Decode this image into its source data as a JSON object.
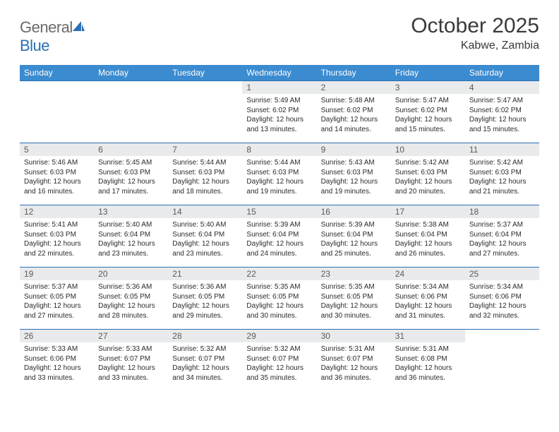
{
  "brand": {
    "part1": "General",
    "part2": "Blue"
  },
  "title": "October 2025",
  "subtitle": "Kabwe, Zambia",
  "colors": {
    "header_blue": "#3b8bd0",
    "rule_blue": "#2a6fb5",
    "daynum_bg": "#e9eaeb",
    "text_dark": "#2a2a2a",
    "text_gray": "#6a6a6a"
  },
  "weekdays": [
    "Sunday",
    "Monday",
    "Tuesday",
    "Wednesday",
    "Thursday",
    "Friday",
    "Saturday"
  ],
  "weeks": [
    [
      null,
      null,
      null,
      {
        "day": "1",
        "sunrise": "5:49 AM",
        "sunset": "6:02 PM",
        "daylight": "12 hours and 13 minutes."
      },
      {
        "day": "2",
        "sunrise": "5:48 AM",
        "sunset": "6:02 PM",
        "daylight": "12 hours and 14 minutes."
      },
      {
        "day": "3",
        "sunrise": "5:47 AM",
        "sunset": "6:02 PM",
        "daylight": "12 hours and 15 minutes."
      },
      {
        "day": "4",
        "sunrise": "5:47 AM",
        "sunset": "6:02 PM",
        "daylight": "12 hours and 15 minutes."
      }
    ],
    [
      {
        "day": "5",
        "sunrise": "5:46 AM",
        "sunset": "6:03 PM",
        "daylight": "12 hours and 16 minutes."
      },
      {
        "day": "6",
        "sunrise": "5:45 AM",
        "sunset": "6:03 PM",
        "daylight": "12 hours and 17 minutes."
      },
      {
        "day": "7",
        "sunrise": "5:44 AM",
        "sunset": "6:03 PM",
        "daylight": "12 hours and 18 minutes."
      },
      {
        "day": "8",
        "sunrise": "5:44 AM",
        "sunset": "6:03 PM",
        "daylight": "12 hours and 19 minutes."
      },
      {
        "day": "9",
        "sunrise": "5:43 AM",
        "sunset": "6:03 PM",
        "daylight": "12 hours and 19 minutes."
      },
      {
        "day": "10",
        "sunrise": "5:42 AM",
        "sunset": "6:03 PM",
        "daylight": "12 hours and 20 minutes."
      },
      {
        "day": "11",
        "sunrise": "5:42 AM",
        "sunset": "6:03 PM",
        "daylight": "12 hours and 21 minutes."
      }
    ],
    [
      {
        "day": "12",
        "sunrise": "5:41 AM",
        "sunset": "6:03 PM",
        "daylight": "12 hours and 22 minutes."
      },
      {
        "day": "13",
        "sunrise": "5:40 AM",
        "sunset": "6:04 PM",
        "daylight": "12 hours and 23 minutes."
      },
      {
        "day": "14",
        "sunrise": "5:40 AM",
        "sunset": "6:04 PM",
        "daylight": "12 hours and 23 minutes."
      },
      {
        "day": "15",
        "sunrise": "5:39 AM",
        "sunset": "6:04 PM",
        "daylight": "12 hours and 24 minutes."
      },
      {
        "day": "16",
        "sunrise": "5:39 AM",
        "sunset": "6:04 PM",
        "daylight": "12 hours and 25 minutes."
      },
      {
        "day": "17",
        "sunrise": "5:38 AM",
        "sunset": "6:04 PM",
        "daylight": "12 hours and 26 minutes."
      },
      {
        "day": "18",
        "sunrise": "5:37 AM",
        "sunset": "6:04 PM",
        "daylight": "12 hours and 27 minutes."
      }
    ],
    [
      {
        "day": "19",
        "sunrise": "5:37 AM",
        "sunset": "6:05 PM",
        "daylight": "12 hours and 27 minutes."
      },
      {
        "day": "20",
        "sunrise": "5:36 AM",
        "sunset": "6:05 PM",
        "daylight": "12 hours and 28 minutes."
      },
      {
        "day": "21",
        "sunrise": "5:36 AM",
        "sunset": "6:05 PM",
        "daylight": "12 hours and 29 minutes."
      },
      {
        "day": "22",
        "sunrise": "5:35 AM",
        "sunset": "6:05 PM",
        "daylight": "12 hours and 30 minutes."
      },
      {
        "day": "23",
        "sunrise": "5:35 AM",
        "sunset": "6:05 PM",
        "daylight": "12 hours and 30 minutes."
      },
      {
        "day": "24",
        "sunrise": "5:34 AM",
        "sunset": "6:06 PM",
        "daylight": "12 hours and 31 minutes."
      },
      {
        "day": "25",
        "sunrise": "5:34 AM",
        "sunset": "6:06 PM",
        "daylight": "12 hours and 32 minutes."
      }
    ],
    [
      {
        "day": "26",
        "sunrise": "5:33 AM",
        "sunset": "6:06 PM",
        "daylight": "12 hours and 33 minutes."
      },
      {
        "day": "27",
        "sunrise": "5:33 AM",
        "sunset": "6:07 PM",
        "daylight": "12 hours and 33 minutes."
      },
      {
        "day": "28",
        "sunrise": "5:32 AM",
        "sunset": "6:07 PM",
        "daylight": "12 hours and 34 minutes."
      },
      {
        "day": "29",
        "sunrise": "5:32 AM",
        "sunset": "6:07 PM",
        "daylight": "12 hours and 35 minutes."
      },
      {
        "day": "30",
        "sunrise": "5:31 AM",
        "sunset": "6:07 PM",
        "daylight": "12 hours and 36 minutes."
      },
      {
        "day": "31",
        "sunrise": "5:31 AM",
        "sunset": "6:08 PM",
        "daylight": "12 hours and 36 minutes."
      },
      null
    ]
  ],
  "labels": {
    "sunrise": "Sunrise:",
    "sunset": "Sunset:",
    "daylight": "Daylight:"
  }
}
